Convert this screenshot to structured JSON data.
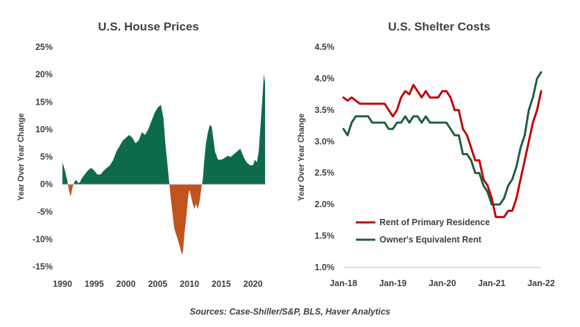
{
  "source": "Sources: Case-Shiller/S&P, BLS, Haver Analytics",
  "colors": {
    "positive": "#0e6b4a",
    "negative": "#c0541d",
    "rent": "#c00000",
    "oer": "#1d5c40",
    "text": "#404040",
    "axis": "#bfbfbf"
  },
  "chart_data": [
    {
      "type": "area",
      "title": "U.S. House Prices",
      "ylabel": "Year Over Year Change",
      "xlabel": "",
      "ylim": [
        -15,
        25
      ],
      "xlim": [
        1990,
        2022
      ],
      "y_ticks": [
        "25%",
        "20%",
        "15%",
        "10%",
        "5%",
        "0%",
        "-5%",
        "-10%",
        "-15%"
      ],
      "y_tick_values": [
        25,
        20,
        15,
        10,
        5,
        0,
        -5,
        -10,
        -15
      ],
      "x_ticks": [
        "1990",
        "1995",
        "2000",
        "2005",
        "2010",
        "2015",
        "2020"
      ],
      "x_tick_values": [
        1990,
        1995,
        2000,
        2005,
        2010,
        2015,
        2020
      ],
      "legend": "none",
      "fill_colors": {
        "positive": "#0e6b4a",
        "negative": "#c0541d"
      },
      "x": [
        1990.0,
        1990.4,
        1990.8,
        1991.0,
        1991.3,
        1991.6,
        1991.9,
        1992.2,
        1992.5,
        1992.8,
        1993.0,
        1993.5,
        1994.0,
        1994.5,
        1995.0,
        1995.5,
        1996.0,
        1996.5,
        1997.0,
        1997.5,
        1998.0,
        1998.5,
        1999.0,
        1999.5,
        2000.0,
        2000.5,
        2001.0,
        2001.5,
        2002.0,
        2002.5,
        2003.0,
        2003.5,
        2004.0,
        2004.5,
        2005.0,
        2005.5,
        2005.9,
        2006.2,
        2006.5,
        2006.8,
        2007.0,
        2007.3,
        2007.6,
        2008.0,
        2008.4,
        2008.8,
        2009.0,
        2009.2,
        2009.5,
        2009.8,
        2010.0,
        2010.3,
        2010.5,
        2010.8,
        2011.0,
        2011.3,
        2011.6,
        2011.9,
        2012.1,
        2012.3,
        2012.6,
        2012.9,
        2013.2,
        2013.5,
        2013.8,
        2014.0,
        2014.5,
        2015.0,
        2015.5,
        2016.0,
        2016.5,
        2017.0,
        2017.5,
        2018.0,
        2018.5,
        2019.0,
        2019.5,
        2020.0,
        2020.3,
        2020.6,
        2020.9,
        2021.2,
        2021.5,
        2021.7,
        2021.9
      ],
      "values": [
        4.0,
        2.5,
        0.5,
        -1.0,
        -2.2,
        -0.5,
        0.5,
        0.8,
        0.2,
        0.5,
        1.0,
        1.8,
        2.5,
        3.0,
        2.5,
        1.8,
        1.8,
        2.5,
        3.0,
        3.5,
        4.5,
        6.0,
        7.0,
        8.0,
        8.5,
        9.0,
        8.5,
        7.5,
        8.0,
        9.5,
        9.0,
        10.0,
        11.5,
        13.0,
        14.0,
        14.5,
        12.0,
        7.5,
        4.0,
        0.5,
        -2.0,
        -5.0,
        -8.0,
        -9.5,
        -11.0,
        -12.8,
        -12.0,
        -9.0,
        -6.0,
        -2.0,
        -1.0,
        -2.5,
        -3.5,
        -4.5,
        -3.5,
        -4.5,
        -3.0,
        -0.5,
        1.0,
        4.0,
        7.5,
        9.5,
        10.8,
        10.5,
        8.0,
        6.0,
        4.5,
        4.5,
        4.8,
        5.2,
        5.0,
        5.5,
        6.0,
        6.5,
        5.0,
        4.0,
        3.5,
        3.5,
        4.5,
        4.0,
        6.0,
        11.0,
        16.0,
        20.0,
        18.5
      ]
    },
    {
      "type": "line",
      "title": "U.S. Shelter Costs",
      "ylabel": "Year Over Year Change",
      "xlabel": "",
      "ylim": [
        1.0,
        4.5
      ],
      "xlim": [
        "2018-01",
        "2022-01"
      ],
      "y_ticks": [
        "4.5%",
        "4.0%",
        "3.5%",
        "3.0%",
        "2.5%",
        "2.0%",
        "1.5%",
        "1.0%"
      ],
      "y_tick_values": [
        4.5,
        4.0,
        3.5,
        3.0,
        2.5,
        2.0,
        1.5,
        1.0
      ],
      "x_ticks": [
        "Jan-18",
        "Jan-19",
        "Jan-20",
        "Jan-21",
        "Jan-22"
      ],
      "x": [
        "2018-01",
        "2018-02",
        "2018-03",
        "2018-04",
        "2018-05",
        "2018-06",
        "2018-07",
        "2018-08",
        "2018-09",
        "2018-10",
        "2018-11",
        "2018-12",
        "2019-01",
        "2019-02",
        "2019-03",
        "2019-04",
        "2019-05",
        "2019-06",
        "2019-07",
        "2019-08",
        "2019-09",
        "2019-10",
        "2019-11",
        "2019-12",
        "2020-01",
        "2020-02",
        "2020-03",
        "2020-04",
        "2020-05",
        "2020-06",
        "2020-07",
        "2020-08",
        "2020-09",
        "2020-10",
        "2020-11",
        "2020-12",
        "2021-01",
        "2021-02",
        "2021-03",
        "2021-04",
        "2021-05",
        "2021-06",
        "2021-07",
        "2021-08",
        "2021-09",
        "2021-10",
        "2021-11",
        "2021-12",
        "2022-01"
      ],
      "legend": "bottom-left",
      "series": [
        {
          "name": "Rent of Primary Residence",
          "color": "#c00000",
          "values": [
            3.7,
            3.65,
            3.7,
            3.65,
            3.6,
            3.6,
            3.6,
            3.6,
            3.6,
            3.6,
            3.6,
            3.5,
            3.4,
            3.5,
            3.7,
            3.8,
            3.75,
            3.9,
            3.8,
            3.7,
            3.8,
            3.7,
            3.7,
            3.7,
            3.8,
            3.8,
            3.7,
            3.5,
            3.5,
            3.2,
            3.1,
            2.9,
            2.7,
            2.7,
            2.4,
            2.3,
            2.1,
            1.8,
            1.8,
            1.8,
            1.9,
            1.9,
            2.1,
            2.4,
            2.7,
            3.0,
            3.3,
            3.5,
            3.8
          ]
        },
        {
          "name": "Owner's Equivalent Rent",
          "color": "#1d5c40",
          "values": [
            3.2,
            3.1,
            3.3,
            3.4,
            3.4,
            3.4,
            3.4,
            3.3,
            3.3,
            3.3,
            3.3,
            3.2,
            3.2,
            3.3,
            3.3,
            3.4,
            3.3,
            3.4,
            3.4,
            3.3,
            3.4,
            3.3,
            3.3,
            3.3,
            3.3,
            3.3,
            3.2,
            3.1,
            3.1,
            2.8,
            2.8,
            2.7,
            2.5,
            2.5,
            2.3,
            2.2,
            2.0,
            2.0,
            2.0,
            2.1,
            2.3,
            2.4,
            2.6,
            2.9,
            3.1,
            3.5,
            3.7,
            4.0,
            4.1
          ]
        }
      ]
    }
  ]
}
